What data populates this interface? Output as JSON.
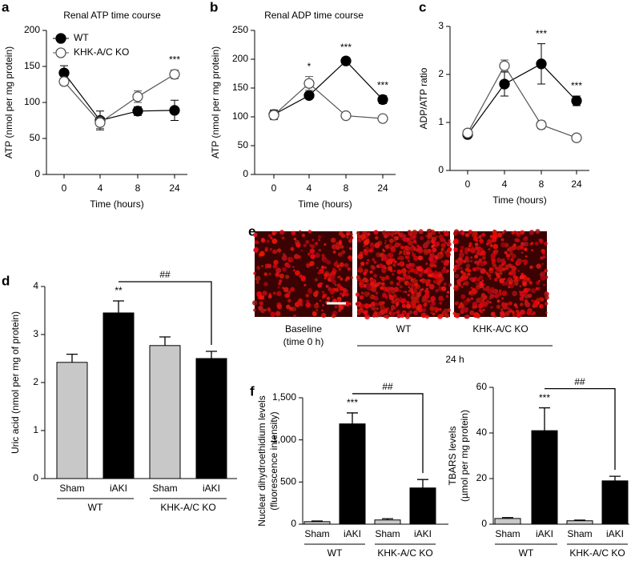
{
  "chart_data": [
    {
      "type": "line",
      "panel": "a",
      "title": "Renal ATP time course",
      "xlabel": "Time (hours)",
      "ylabel": [
        "ATP (nmol per mg protein)"
      ],
      "categories": [
        "0",
        "4",
        "8",
        "24"
      ],
      "ylim": [
        0,
        200
      ],
      "yticks": [
        0,
        50,
        100,
        150,
        200
      ],
      "legend": true,
      "series": [
        {
          "name": "WT",
          "color": "#000000",
          "marker": "filled",
          "values": [
            141,
            75,
            88,
            89
          ],
          "errors": [
            10,
            13,
            6,
            14
          ]
        },
        {
          "name": "KHK-A/C KO",
          "color": "#555555",
          "marker": "open",
          "values": [
            129,
            72,
            108,
            139
          ],
          "errors": [
            5,
            8,
            8,
            6
          ]
        }
      ],
      "significance": [
        null,
        null,
        null,
        "***"
      ]
    },
    {
      "type": "line",
      "panel": "b",
      "title": "Renal ADP time course",
      "xlabel": "Time (hours)",
      "ylabel": [
        "ATP (nmol per mg protein)"
      ],
      "categories": [
        "0",
        "4",
        "8",
        "24"
      ],
      "ylim": [
        0,
        250
      ],
      "yticks": [
        0,
        50,
        100,
        150,
        200,
        250
      ],
      "legend": false,
      "series": [
        {
          "color": "#000000",
          "marker": "filled",
          "values": [
            104,
            137,
            197,
            130
          ],
          "errors": [
            8,
            5,
            6,
            7
          ]
        },
        {
          "color": "#555555",
          "marker": "open",
          "values": [
            103,
            158,
            102,
            97
          ],
          "errors": [
            8,
            12,
            3,
            3
          ]
        }
      ],
      "significance": [
        null,
        "*",
        "***",
        "***"
      ]
    },
    {
      "type": "line",
      "panel": "c",
      "xlabel": "Time (hours)",
      "ylabel": [
        "ADP/ATP ratio"
      ],
      "categories": [
        "0",
        "4",
        "8",
        "24"
      ],
      "ylim": [
        0,
        3
      ],
      "yticks": [
        0,
        1,
        2,
        3
      ],
      "legend": false,
      "series": [
        {
          "color": "#000000",
          "marker": "filled",
          "values": [
            0.75,
            1.8,
            2.22,
            1.45
          ],
          "errors": [
            0.05,
            0.25,
            0.42,
            0.1
          ]
        },
        {
          "color": "#555555",
          "marker": "open",
          "values": [
            0.78,
            2.18,
            0.95,
            0.68
          ],
          "errors": [
            0.04,
            0.12,
            0.08,
            0.07
          ]
        }
      ],
      "significance": [
        null,
        null,
        "***",
        "***"
      ]
    },
    {
      "type": "bar",
      "panel": "d",
      "ylabel": [
        "Uric acid (nmol per mg of protein)"
      ],
      "categories": [
        "Sham",
        "iAKI",
        "Sham",
        "iAKI"
      ],
      "groups": [
        "WT",
        "KHK-A/C KO"
      ],
      "values": [
        2.42,
        3.45,
        2.77,
        2.5
      ],
      "errors": [
        0.17,
        0.25,
        0.18,
        0.15
      ],
      "colors": [
        "#c8c8c8",
        "#000000",
        "#c8c8c8",
        "#000000"
      ],
      "ylim": [
        0,
        4
      ],
      "yticks": [
        0,
        1,
        2,
        3,
        4
      ],
      "significance": [
        null,
        "**",
        null,
        null
      ],
      "bracket_label": "##"
    },
    {
      "type": "bar",
      "panel": "f",
      "ylabel": [
        "Nuclear dihydroethidium levels",
        "(fluorescence intensity)"
      ],
      "categories": [
        "Sham",
        "iAKI",
        "Sham",
        "iAKI"
      ],
      "groups": [
        "WT",
        "KHK-A/C KO"
      ],
      "values": [
        30,
        1190,
        50,
        430
      ],
      "errors": [
        8,
        130,
        15,
        100
      ],
      "colors": [
        "#c8c8c8",
        "#000000",
        "#c8c8c8",
        "#000000"
      ],
      "ylim": [
        0,
        1500
      ],
      "yticks": [
        0,
        500,
        {
          "value": 1000,
          "label": "1,000"
        },
        {
          "value": 1500,
          "label": "1,500"
        }
      ],
      "significance": [
        null,
        "***",
        null,
        null
      ],
      "bracket_label": "##"
    },
    {
      "type": "bar",
      "ylabel": [
        "TBARS levels",
        "(µmol per mg protein)"
      ],
      "categories": [
        "Sham",
        "iAKI",
        "Sham",
        "iAKI"
      ],
      "groups": [
        "WT",
        "KHK-A/C KO"
      ],
      "values": [
        2.5,
        41,
        1.5,
        19
      ],
      "errors": [
        0.4,
        10,
        0.3,
        2
      ],
      "colors": [
        "#c8c8c8",
        "#000000",
        "#c8c8c8",
        "#000000"
      ],
      "ylim": [
        0,
        60
      ],
      "yticks": [
        0,
        20,
        40,
        60
      ],
      "significance": [
        null,
        "***",
        null,
        null
      ],
      "bracket_label": "##"
    }
  ],
  "image_panel": {
    "panel": "e",
    "images": [
      {
        "label": [
          "Baseline",
          "(time 0 h)"
        ]
      },
      {
        "label": [
          "WT"
        ]
      },
      {
        "label": [
          "KHK-A/C KO"
        ]
      }
    ],
    "group_label": "24 h"
  }
}
